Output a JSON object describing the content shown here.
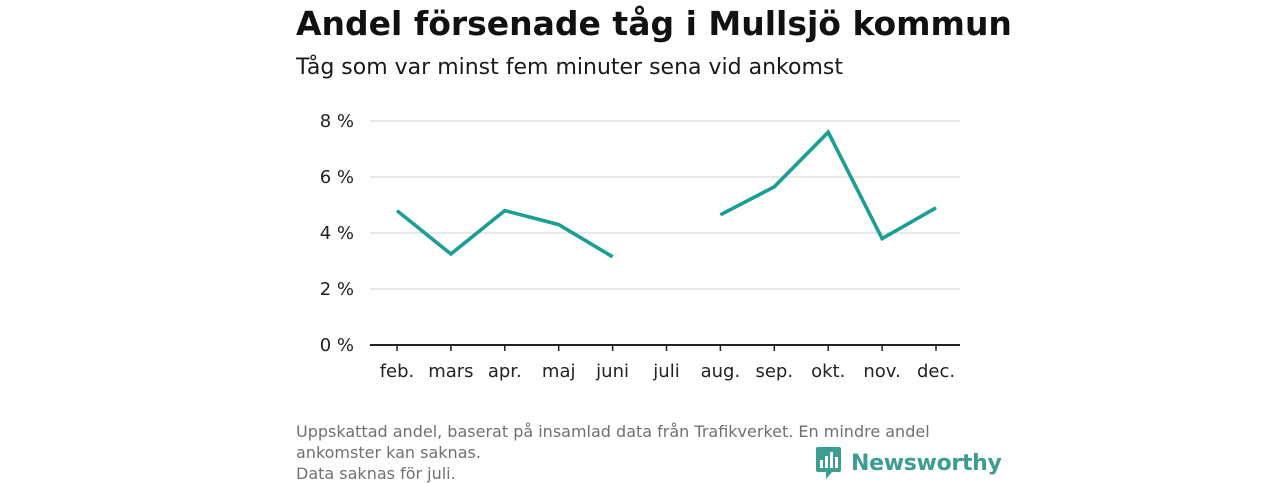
{
  "header": {
    "title": "Andel försenade tåg i Mullsjö kommun",
    "subtitle": "Tåg som var minst fem minuter sena vid ankomst"
  },
  "footer": {
    "note_line1": "Uppskattad andel, baserat på insamlad data från Trafikverket. En mindre andel",
    "note_line2": "ankomster kan saknas.",
    "note_line3": "Data saknas för juli.",
    "brand": "Newsworthy"
  },
  "colors": {
    "line": "#1a9e95",
    "grid": "#d9d9d9",
    "axis": "#222222",
    "brand": "#3c9d90"
  },
  "chart_data": {
    "type": "line",
    "categories": [
      "feb.",
      "mars",
      "apr.",
      "maj",
      "juni",
      "juli",
      "aug.",
      "sep.",
      "okt.",
      "nov.",
      "dec."
    ],
    "series": [
      {
        "values": [
          4.8,
          3.25,
          4.8,
          4.3,
          3.15,
          null,
          4.65,
          5.65,
          7.6,
          3.8,
          4.9
        ]
      }
    ],
    "ylim": [
      0,
      8
    ],
    "yticks": [
      0,
      2,
      4,
      6,
      8
    ],
    "ytick_labels": [
      "0 %",
      "2 %",
      "4 %",
      "6 %",
      "8 %"
    ],
    "grid": true,
    "legend": "none"
  }
}
